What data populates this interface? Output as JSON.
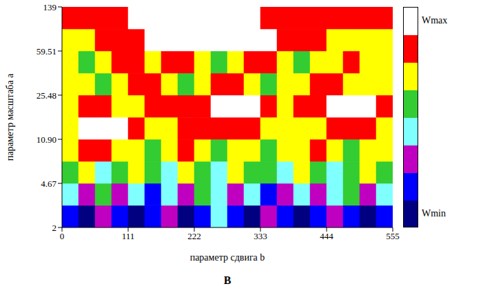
{
  "chart_data": {
    "type": "heatmap",
    "caption": "В",
    "x_label": "параметр сдвига b",
    "y_label": "параметр масштаба a",
    "log": "y",
    "grid": false,
    "xlim": [
      0,
      555
    ],
    "xticks": [
      0,
      111,
      222,
      333,
      444,
      555
    ],
    "ylim": [
      2,
      139
    ],
    "yticks": [
      2,
      4.67,
      {
        "value": 10.9,
        "label": "10.90"
      },
      25.48,
      59.51,
      139
    ],
    "x_bins": [
      0,
      27.75,
      55.5,
      83.25,
      111,
      138.75,
      166.5,
      194.25,
      222,
      249.75,
      277.5,
      305.25,
      333,
      360.75,
      388.5,
      416.25,
      444,
      471.75,
      499.5,
      527.25,
      555
    ],
    "y_bins": [
      2,
      3.06,
      4.67,
      7.13,
      10.9,
      16.65,
      25.48,
      38.9,
      59.51,
      90.9,
      139
    ],
    "cells": [
      [
        1,
        0,
        2,
        1,
        0,
        1,
        2,
        0,
        1,
        3,
        1,
        0,
        2,
        1,
        0,
        1,
        2,
        1,
        0,
        1
      ],
      [
        3,
        2,
        4,
        2,
        3,
        1,
        3,
        2,
        4,
        3,
        2,
        3,
        1,
        2,
        3,
        2,
        3,
        4,
        2,
        3
      ],
      [
        4,
        5,
        3,
        4,
        5,
        4,
        3,
        5,
        4,
        3,
        5,
        4,
        4,
        3,
        5,
        4,
        3,
        4,
        5,
        4
      ],
      [
        5,
        6,
        6,
        5,
        5,
        4,
        5,
        6,
        5,
        4,
        5,
        5,
        4,
        5,
        5,
        6,
        5,
        4,
        5,
        5
      ],
      [
        5,
        7,
        7,
        7,
        6,
        5,
        5,
        6,
        6,
        6,
        6,
        6,
        5,
        5,
        5,
        5,
        6,
        6,
        6,
        5
      ],
      [
        5,
        6,
        6,
        5,
        5,
        6,
        6,
        6,
        6,
        7,
        7,
        7,
        6,
        5,
        6,
        6,
        7,
        7,
        7,
        6
      ],
      [
        5,
        5,
        4,
        5,
        6,
        6,
        5,
        4,
        5,
        6,
        6,
        5,
        4,
        5,
        5,
        6,
        6,
        5,
        5,
        5
      ],
      [
        5,
        4,
        5,
        6,
        6,
        5,
        6,
        6,
        5,
        4,
        5,
        6,
        6,
        5,
        4,
        5,
        5,
        6,
        5,
        5
      ],
      [
        5,
        5,
        6,
        6,
        6,
        7,
        7,
        7,
        7,
        7,
        7,
        7,
        7,
        6,
        6,
        6,
        5,
        5,
        5,
        5
      ],
      [
        6,
        6,
        6,
        6,
        7,
        7,
        7,
        7,
        7,
        7,
        7,
        7,
        6,
        6,
        6,
        6,
        6,
        6,
        6,
        6
      ]
    ],
    "colorbar": {
      "range": [
        0,
        7
      ],
      "ticks": [
        {
          "value": 0,
          "label": "Wmin"
        },
        {
          "value": 7,
          "label": "Wmax"
        }
      ],
      "colors": [
        "#000080",
        "#0000ff",
        "#c000c0",
        "#80ffff",
        "#33cc33",
        "#ffff00",
        "#ff0000",
        "#ffffff"
      ]
    }
  }
}
